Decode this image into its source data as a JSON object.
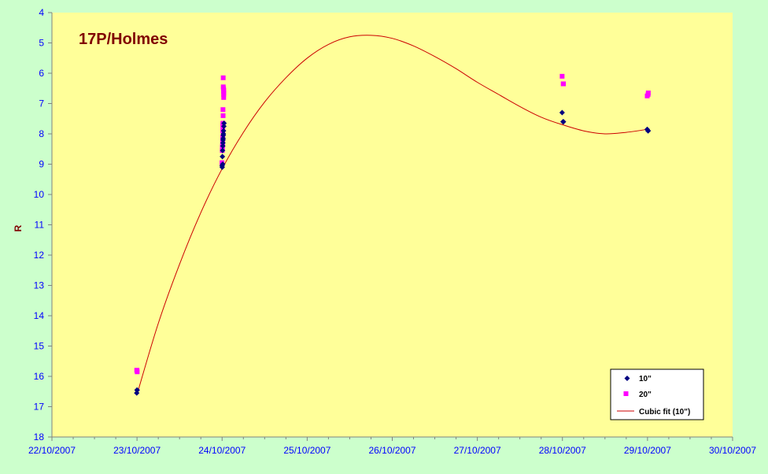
{
  "chart_data": {
    "type": "scatter",
    "title": "17P/Holmes",
    "xlabel": "",
    "ylabel": "R",
    "y_reversed": true,
    "ylim": [
      4,
      18
    ],
    "y_ticks": [
      "4",
      "5",
      "6",
      "7",
      "8",
      "9",
      "10",
      "11",
      "12",
      "13",
      "14",
      "15",
      "16",
      "17",
      "18"
    ],
    "xlim": [
      "2007-10-22",
      "2007-10-30"
    ],
    "x_ticks": [
      "22/10/2007",
      "23/10/2007",
      "24/10/2007",
      "25/10/2007",
      "26/10/2007",
      "27/10/2007",
      "28/10/2007",
      "29/10/2007",
      "30/10/2007"
    ],
    "grid": false,
    "legend_position": "bottom-right",
    "colors": {
      "plot_background": "#ffff99",
      "page_background": "#ccffcc",
      "axis_text": "#0000ff",
      "title_text": "#800000",
      "series_10": "#000080",
      "series_20": "#ff00ff",
      "fit_line": "#cc0000"
    },
    "series": [
      {
        "name": "10\"",
        "marker": "diamond",
        "x": [
          "2007-10-22T23:55",
          "2007-10-23T00:00",
          "2007-10-23T00:03",
          "2007-10-24T00:00",
          "2007-10-24T00:02",
          "2007-10-24T00:05",
          "2007-10-24T00:08",
          "2007-10-24T00:10",
          "2007-10-24T00:12",
          "2007-10-24T00:14",
          "2007-10-24T00:16",
          "2007-10-24T00:18",
          "2007-10-24T00:20",
          "2007-10-24T00:22",
          "2007-10-24T00:24",
          "2007-10-24T00:30",
          "2007-10-24T00:33",
          "2007-10-27T23:55",
          "2007-10-28T00:10",
          "2007-10-28T00:18",
          "2007-10-28T23:55",
          "2007-10-29T00:08",
          "2007-10-29T00:12"
        ],
        "y": [
          16.55,
          16.45,
          16.45,
          9.05,
          9.1,
          8.75,
          8.55,
          9.0,
          8.4,
          8.3,
          8.2,
          8.15,
          8.05,
          8.0,
          7.9,
          7.75,
          7.65,
          7.3,
          7.6,
          7.6,
          7.85,
          7.9,
          7.9
        ]
      },
      {
        "name": "20\"",
        "marker": "square",
        "x": [
          "2007-10-22T23:55",
          "2007-10-23T00:00",
          "2007-10-23T00:03",
          "2007-10-23T23:58",
          "2007-10-24T00:03",
          "2007-10-24T00:05",
          "2007-10-24T00:07",
          "2007-10-24T00:08",
          "2007-10-24T00:09",
          "2007-10-24T00:10",
          "2007-10-24T00:11",
          "2007-10-24T00:12",
          "2007-10-24T00:13",
          "2007-10-24T00:14",
          "2007-10-24T00:15",
          "2007-10-24T00:17",
          "2007-10-24T00:19",
          "2007-10-24T00:20",
          "2007-10-24T00:22",
          "2007-10-24T00:25",
          "2007-10-24T00:26",
          "2007-10-24T00:27",
          "2007-10-24T00:28",
          "2007-10-24T00:29",
          "2007-10-27T23:55",
          "2007-10-28T00:13",
          "2007-10-28T00:18",
          "2007-10-28T23:55",
          "2007-10-29T00:10",
          "2007-10-29T00:13"
        ],
        "y": [
          15.8,
          15.8,
          15.85,
          8.95,
          8.55,
          8.45,
          8.4,
          8.3,
          8.2,
          8.1,
          7.9,
          7.75,
          7.7,
          7.65,
          7.2,
          7.4,
          6.15,
          6.45,
          6.5,
          6.6,
          6.7,
          6.8,
          6.55,
          6.65,
          6.1,
          6.35,
          6.35,
          6.75,
          6.7,
          6.65
        ]
      },
      {
        "name": "Cubic fit (10\")",
        "type": "line",
        "x": [
          "2007-10-23T00:00",
          "2007-10-23T06:00",
          "2007-10-23T12:00",
          "2007-10-23T18:00",
          "2007-10-24T00:00",
          "2007-10-24T06:00",
          "2007-10-24T12:00",
          "2007-10-24T18:00",
          "2007-10-25T00:00",
          "2007-10-25T06:00",
          "2007-10-25T12:00",
          "2007-10-25T18:00",
          "2007-10-26T00:00",
          "2007-10-26T06:00",
          "2007-10-26T12:00",
          "2007-10-26T18:00",
          "2007-10-27T00:00",
          "2007-10-27T06:00",
          "2007-10-27T12:00",
          "2007-10-27T18:00",
          "2007-10-28T00:00",
          "2007-10-28T06:00",
          "2007-10-28T12:00",
          "2007-10-28T18:00",
          "2007-10-29T00:00"
        ],
        "y": [
          16.6,
          14.25,
          12.3,
          10.6,
          9.15,
          7.95,
          6.95,
          6.15,
          5.5,
          5.05,
          4.8,
          4.75,
          4.85,
          5.1,
          5.45,
          5.85,
          6.3,
          6.7,
          7.1,
          7.45,
          7.7,
          7.9,
          8.0,
          7.95,
          7.85
        ]
      }
    ]
  }
}
